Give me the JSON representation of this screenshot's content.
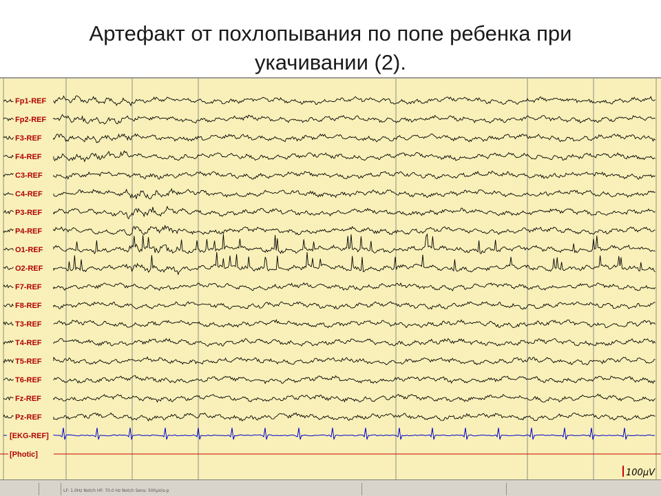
{
  "slide": {
    "title": "Артефакт от похлопывания по попе ребенка при\nукачивании (2)."
  },
  "eeg": {
    "channels": [
      {
        "label": "Fp1-REF",
        "type": "eeg"
      },
      {
        "label": "Fp2-REF",
        "type": "eeg"
      },
      {
        "label": "F3-REF",
        "type": "eeg"
      },
      {
        "label": "F4-REF",
        "type": "eeg"
      },
      {
        "label": "C3-REF",
        "type": "eeg"
      },
      {
        "label": "C4-REF",
        "type": "eeg"
      },
      {
        "label": "P3-REF",
        "type": "eeg"
      },
      {
        "label": "P4-REF",
        "type": "eeg"
      },
      {
        "label": "O1-REF",
        "type": "eeg"
      },
      {
        "label": "O2-REF",
        "type": "eeg"
      },
      {
        "label": "F7-REF",
        "type": "eeg"
      },
      {
        "label": "F8-REF",
        "type": "eeg"
      },
      {
        "label": "T3-REF",
        "type": "eeg"
      },
      {
        "label": "T4-REF",
        "type": "eeg"
      },
      {
        "label": "T5-REF",
        "type": "eeg"
      },
      {
        "label": "T6-REF",
        "type": "eeg"
      },
      {
        "label": "Fz-REF",
        "type": "eeg"
      },
      {
        "label": "Pz-REF",
        "type": "eeg"
      },
      {
        "label": "[EKG-REF]",
        "type": "ekg"
      },
      {
        "label": "[Photic]",
        "type": "photic"
      }
    ],
    "scale_label": "100µV",
    "colors": {
      "background": "#f8f0b8",
      "trace": "#000000",
      "ekg_trace": "#0000cc",
      "photic_trace": "#cc0000",
      "label": "#b00000",
      "grid": "#8c8c8c"
    }
  },
  "status_bar": {
    "text": "LF: 1.0Hz  Notch  HF: 70.0 Hz  Notch  Sens: 500µV/s-p"
  }
}
